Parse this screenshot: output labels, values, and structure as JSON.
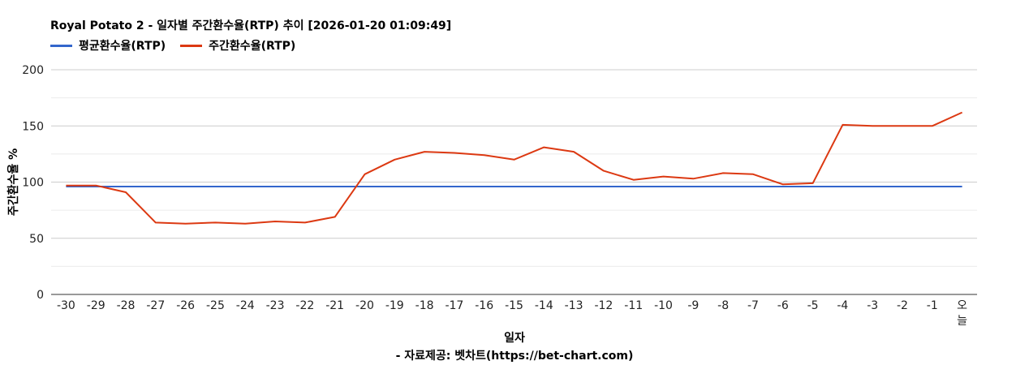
{
  "title": "Royal Potato 2 - 일자별 주간환수율(RTP) 추이 [2026-01-20 01:09:49]",
  "source_note": "- 자료제공: 벳차트(https://bet-chart.com)",
  "chart_data": {
    "type": "line",
    "categories": [
      "-30",
      "-29",
      "-28",
      "-27",
      "-26",
      "-25",
      "-24",
      "-23",
      "-22",
      "-21",
      "-20",
      "-19",
      "-18",
      "-17",
      "-16",
      "-15",
      "-14",
      "-13",
      "-12",
      "-11",
      "-10",
      "-9",
      "-8",
      "-7",
      "-6",
      "-5",
      "-4",
      "-3",
      "-2",
      "-1",
      "오늘"
    ],
    "series": [
      {
        "name": "평균환수율(RTP)",
        "color": "#3366cc",
        "values": [
          96,
          96,
          96,
          96,
          96,
          96,
          96,
          96,
          96,
          96,
          96,
          96,
          96,
          96,
          96,
          96,
          96,
          96,
          96,
          96,
          96,
          96,
          96,
          96,
          96,
          96,
          96,
          96,
          96,
          96,
          96
        ]
      },
      {
        "name": "주간환수율(RTP)",
        "color": "#dc3912",
        "values": [
          97,
          97,
          91,
          64,
          63,
          64,
          63,
          65,
          64,
          69,
          107,
          120,
          127,
          126,
          124,
          120,
          131,
          127,
          110,
          102,
          105,
          103,
          108,
          107,
          98,
          99,
          151,
          150,
          150,
          150,
          162
        ]
      }
    ],
    "xlabel": "일자",
    "ylabel": "주간환수율 %",
    "yticks": [
      0,
      50,
      100,
      150,
      200
    ],
    "ylim": [
      0,
      200
    ],
    "grid": true,
    "legend": "top-left"
  }
}
